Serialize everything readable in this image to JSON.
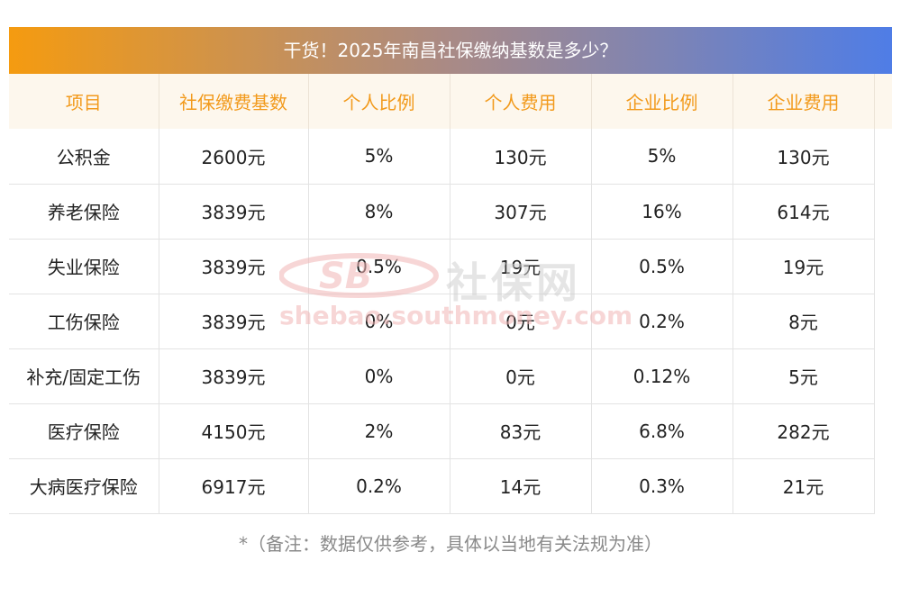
{
  "title": "干货！2025年南昌社保缴纳基数是多少？",
  "table": {
    "headers": [
      "项目",
      "社保缴费基数",
      "个人比例",
      "个人费用",
      "企业比例",
      "企业费用"
    ],
    "rows": [
      [
        "公积金",
        "2600元",
        "5%",
        "130元",
        "5%",
        "130元"
      ],
      [
        "养老保险",
        "3839元",
        "8%",
        "307元",
        "16%",
        "614元"
      ],
      [
        "失业保险",
        "3839元",
        "0.5%",
        "19元",
        "0.5%",
        "19元"
      ],
      [
        "工伤保险",
        "3839元",
        "0%",
        "0元",
        "0.2%",
        "8元"
      ],
      [
        "补充/固定工伤",
        "3839元",
        "0%",
        "0元",
        "0.12%",
        "5元"
      ],
      [
        "医疗保险",
        "4150元",
        "2%",
        "83元",
        "6.8%",
        "282元"
      ],
      [
        "大病医疗保险",
        "6917元",
        "0.2%",
        "14元",
        "0.3%",
        "21元"
      ]
    ]
  },
  "watermark": {
    "logo_text": "社保网",
    "url": "shebao.southmoney.com"
  },
  "footnote": "*（备注：数据仅供参考，具体以当地有关法规为准）",
  "colors": {
    "header_text": "#f29a1c",
    "header_bg": "#fdf7ed",
    "title_gradient_start": "#f59b10",
    "title_gradient_end": "#4f7de6"
  }
}
